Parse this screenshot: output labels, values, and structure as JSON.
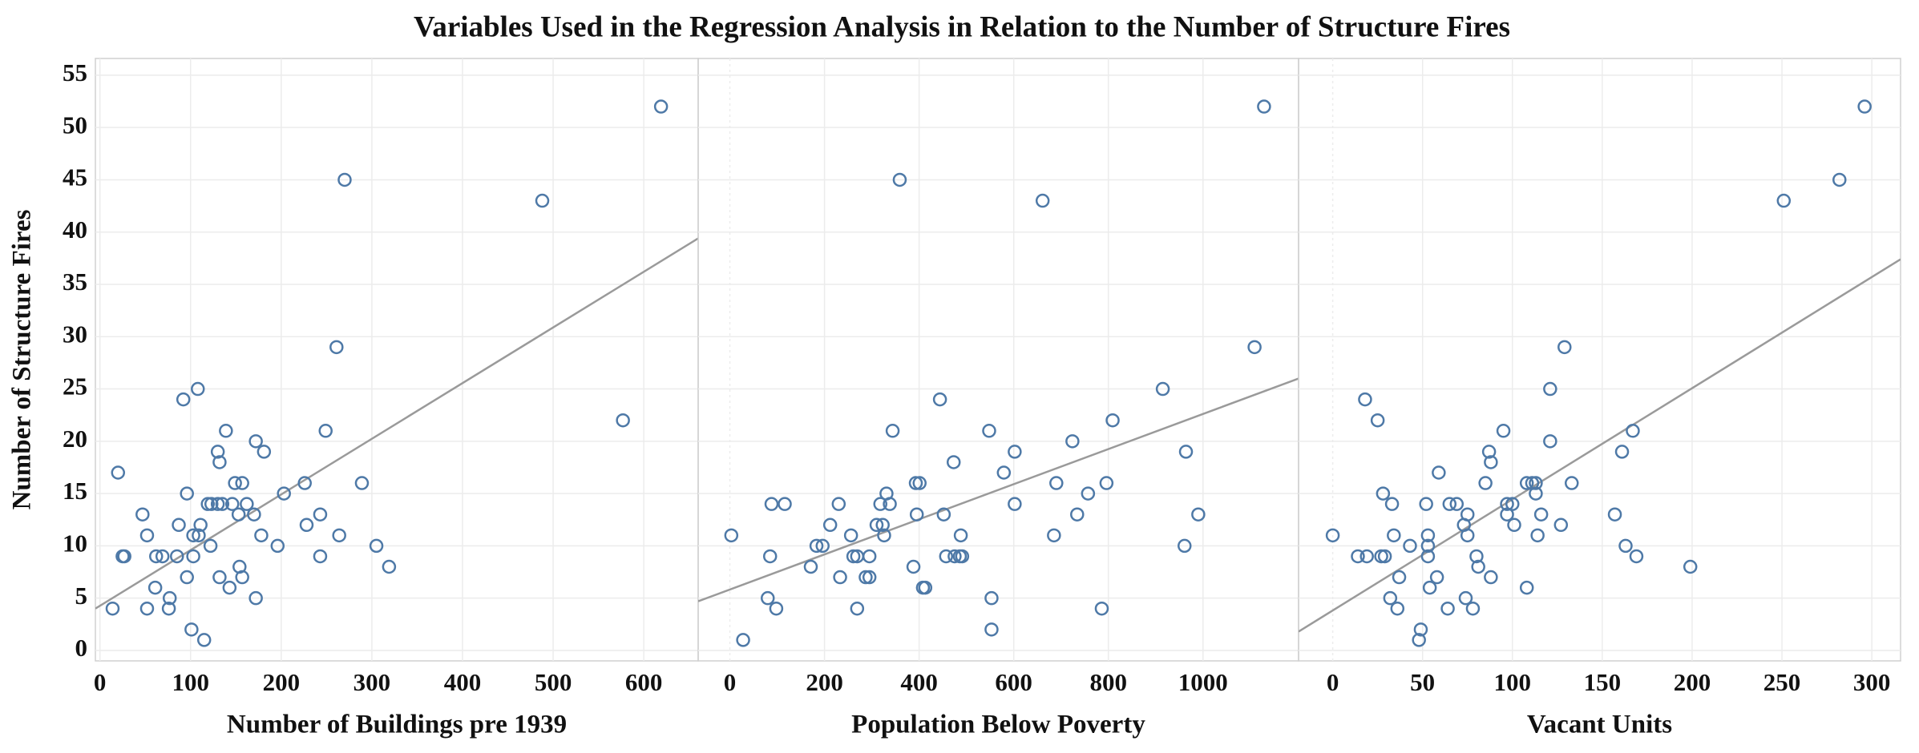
{
  "title": "Variables Used in the Regression Analysis in Relation to the Number of Structure Fires",
  "ylabel": "Number of Structure Fires",
  "chart_data": [
    {
      "type": "scatter",
      "xlabel": "Number of Buildings pre 1939",
      "color": "#4e79a7",
      "x": [
        14,
        20,
        25,
        27,
        47,
        52,
        52,
        61,
        62,
        69,
        77,
        76,
        85,
        87,
        92,
        96,
        96,
        101,
        103,
        103,
        109,
        108,
        111,
        115,
        119,
        123,
        130,
        135,
        122,
        130,
        132,
        132,
        139,
        143,
        146,
        149,
        157,
        153,
        154,
        157,
        162,
        170,
        172,
        172,
        178,
        181,
        196,
        203,
        226,
        228,
        243,
        243,
        249,
        261,
        264,
        270,
        289,
        305,
        319,
        488,
        577,
        619
      ],
      "values": [
        4,
        17,
        9,
        9,
        13,
        11,
        4,
        6,
        9,
        9,
        5,
        4,
        9,
        12,
        24,
        15,
        7,
        2,
        9,
        11,
        11,
        25,
        12,
        1,
        14,
        14,
        14,
        14,
        10,
        19,
        18,
        7,
        21,
        6,
        14,
        16,
        16,
        13,
        8,
        7,
        14,
        13,
        20,
        5,
        11,
        19,
        10,
        15,
        16,
        12,
        13,
        9,
        21,
        29,
        11,
        45,
        16,
        10,
        8,
        43,
        22,
        52
      ],
      "trendline": {
        "x": [
          -5,
          660
        ],
        "values": [
          4.0,
          39.4
        ]
      },
      "xlim": [
        -5,
        660
      ],
      "xticks": [
        0,
        100,
        200,
        300,
        400,
        500,
        600
      ],
      "ylim": [
        -1,
        56.6
      ],
      "yticks": [
        0,
        5,
        10,
        15,
        20,
        25,
        30,
        35,
        40,
        45,
        50,
        55
      ],
      "grid": true
    },
    {
      "type": "scatter",
      "xlabel": "Population Below Poverty",
      "color": "#4e79a7",
      "x": [
        3,
        28,
        80,
        85,
        88,
        98,
        116,
        171,
        183,
        196,
        212,
        230,
        233,
        256,
        261,
        269,
        269,
        287,
        295,
        295,
        310,
        323,
        318,
        326,
        331,
        338,
        344,
        359,
        388,
        393,
        401,
        395,
        408,
        413,
        444,
        452,
        457,
        473,
        475,
        486,
        491,
        488,
        548,
        553,
        553,
        579,
        602,
        602,
        661,
        685,
        690,
        724,
        734,
        757,
        786,
        796,
        809,
        915,
        961,
        964,
        990,
        1109,
        1129
      ],
      "values": [
        11,
        1,
        5,
        9,
        14,
        4,
        14,
        8,
        10,
        10,
        12,
        14,
        7,
        11,
        9,
        9,
        4,
        7,
        7,
        9,
        12,
        12,
        14,
        11,
        15,
        14,
        21,
        45,
        8,
        16,
        16,
        13,
        6,
        6,
        24,
        13,
        9,
        18,
        9,
        9,
        9,
        11,
        21,
        5,
        2,
        17,
        19,
        14,
        43,
        11,
        16,
        20,
        13,
        15,
        4,
        16,
        22,
        25,
        10,
        19,
        13,
        29,
        52
      ],
      "trendline": {
        "x": [
          -67,
          1202
        ],
        "values": [
          4.7,
          26.0
        ]
      },
      "xlim": [
        -67,
        1202
      ],
      "xticks": [
        0,
        200,
        400,
        600,
        800,
        1000
      ],
      "ylim": [
        -1,
        56.6
      ],
      "yticks": [
        0,
        5,
        10,
        15,
        20,
        25,
        30,
        35,
        40,
        45,
        50,
        55
      ],
      "grid": true
    },
    {
      "type": "scatter",
      "xlabel": "Vacant Units",
      "color": "#4e79a7",
      "x": [
        0,
        14,
        19,
        18,
        25,
        27,
        29,
        28,
        32,
        33,
        34,
        36,
        37,
        43,
        48,
        49,
        52,
        53,
        53,
        53,
        54,
        58,
        59,
        64,
        65,
        69,
        73,
        74,
        75,
        75,
        78,
        80,
        81,
        85,
        87,
        88,
        88,
        95,
        97,
        97,
        100,
        101,
        108,
        108,
        111,
        113,
        113,
        114,
        116,
        121,
        121,
        127,
        129,
        133,
        157,
        161,
        163,
        167,
        169,
        199,
        251,
        282,
        296
      ],
      "values": [
        11,
        9,
        9,
        24,
        22,
        9,
        9,
        15,
        5,
        14,
        11,
        4,
        7,
        10,
        1,
        2,
        14,
        11,
        10,
        9,
        6,
        7,
        17,
        4,
        14,
        14,
        12,
        5,
        11,
        13,
        4,
        9,
        8,
        16,
        19,
        18,
        7,
        21,
        14,
        13,
        14,
        12,
        6,
        16,
        16,
        16,
        15,
        11,
        13,
        20,
        25,
        12,
        29,
        16,
        13,
        19,
        10,
        21,
        9,
        8,
        43,
        45,
        52
      ],
      "trendline": {
        "x": [
          -19,
          316
        ],
        "values": [
          1.8,
          37.4
        ]
      },
      "xlim": [
        -19,
        316
      ],
      "xticks": [
        0,
        50,
        100,
        150,
        200,
        250,
        300
      ],
      "ylim": [
        -1,
        56.6
      ],
      "yticks": [
        0,
        5,
        10,
        15,
        20,
        25,
        30,
        35,
        40,
        45,
        50,
        55
      ],
      "grid": true
    }
  ]
}
